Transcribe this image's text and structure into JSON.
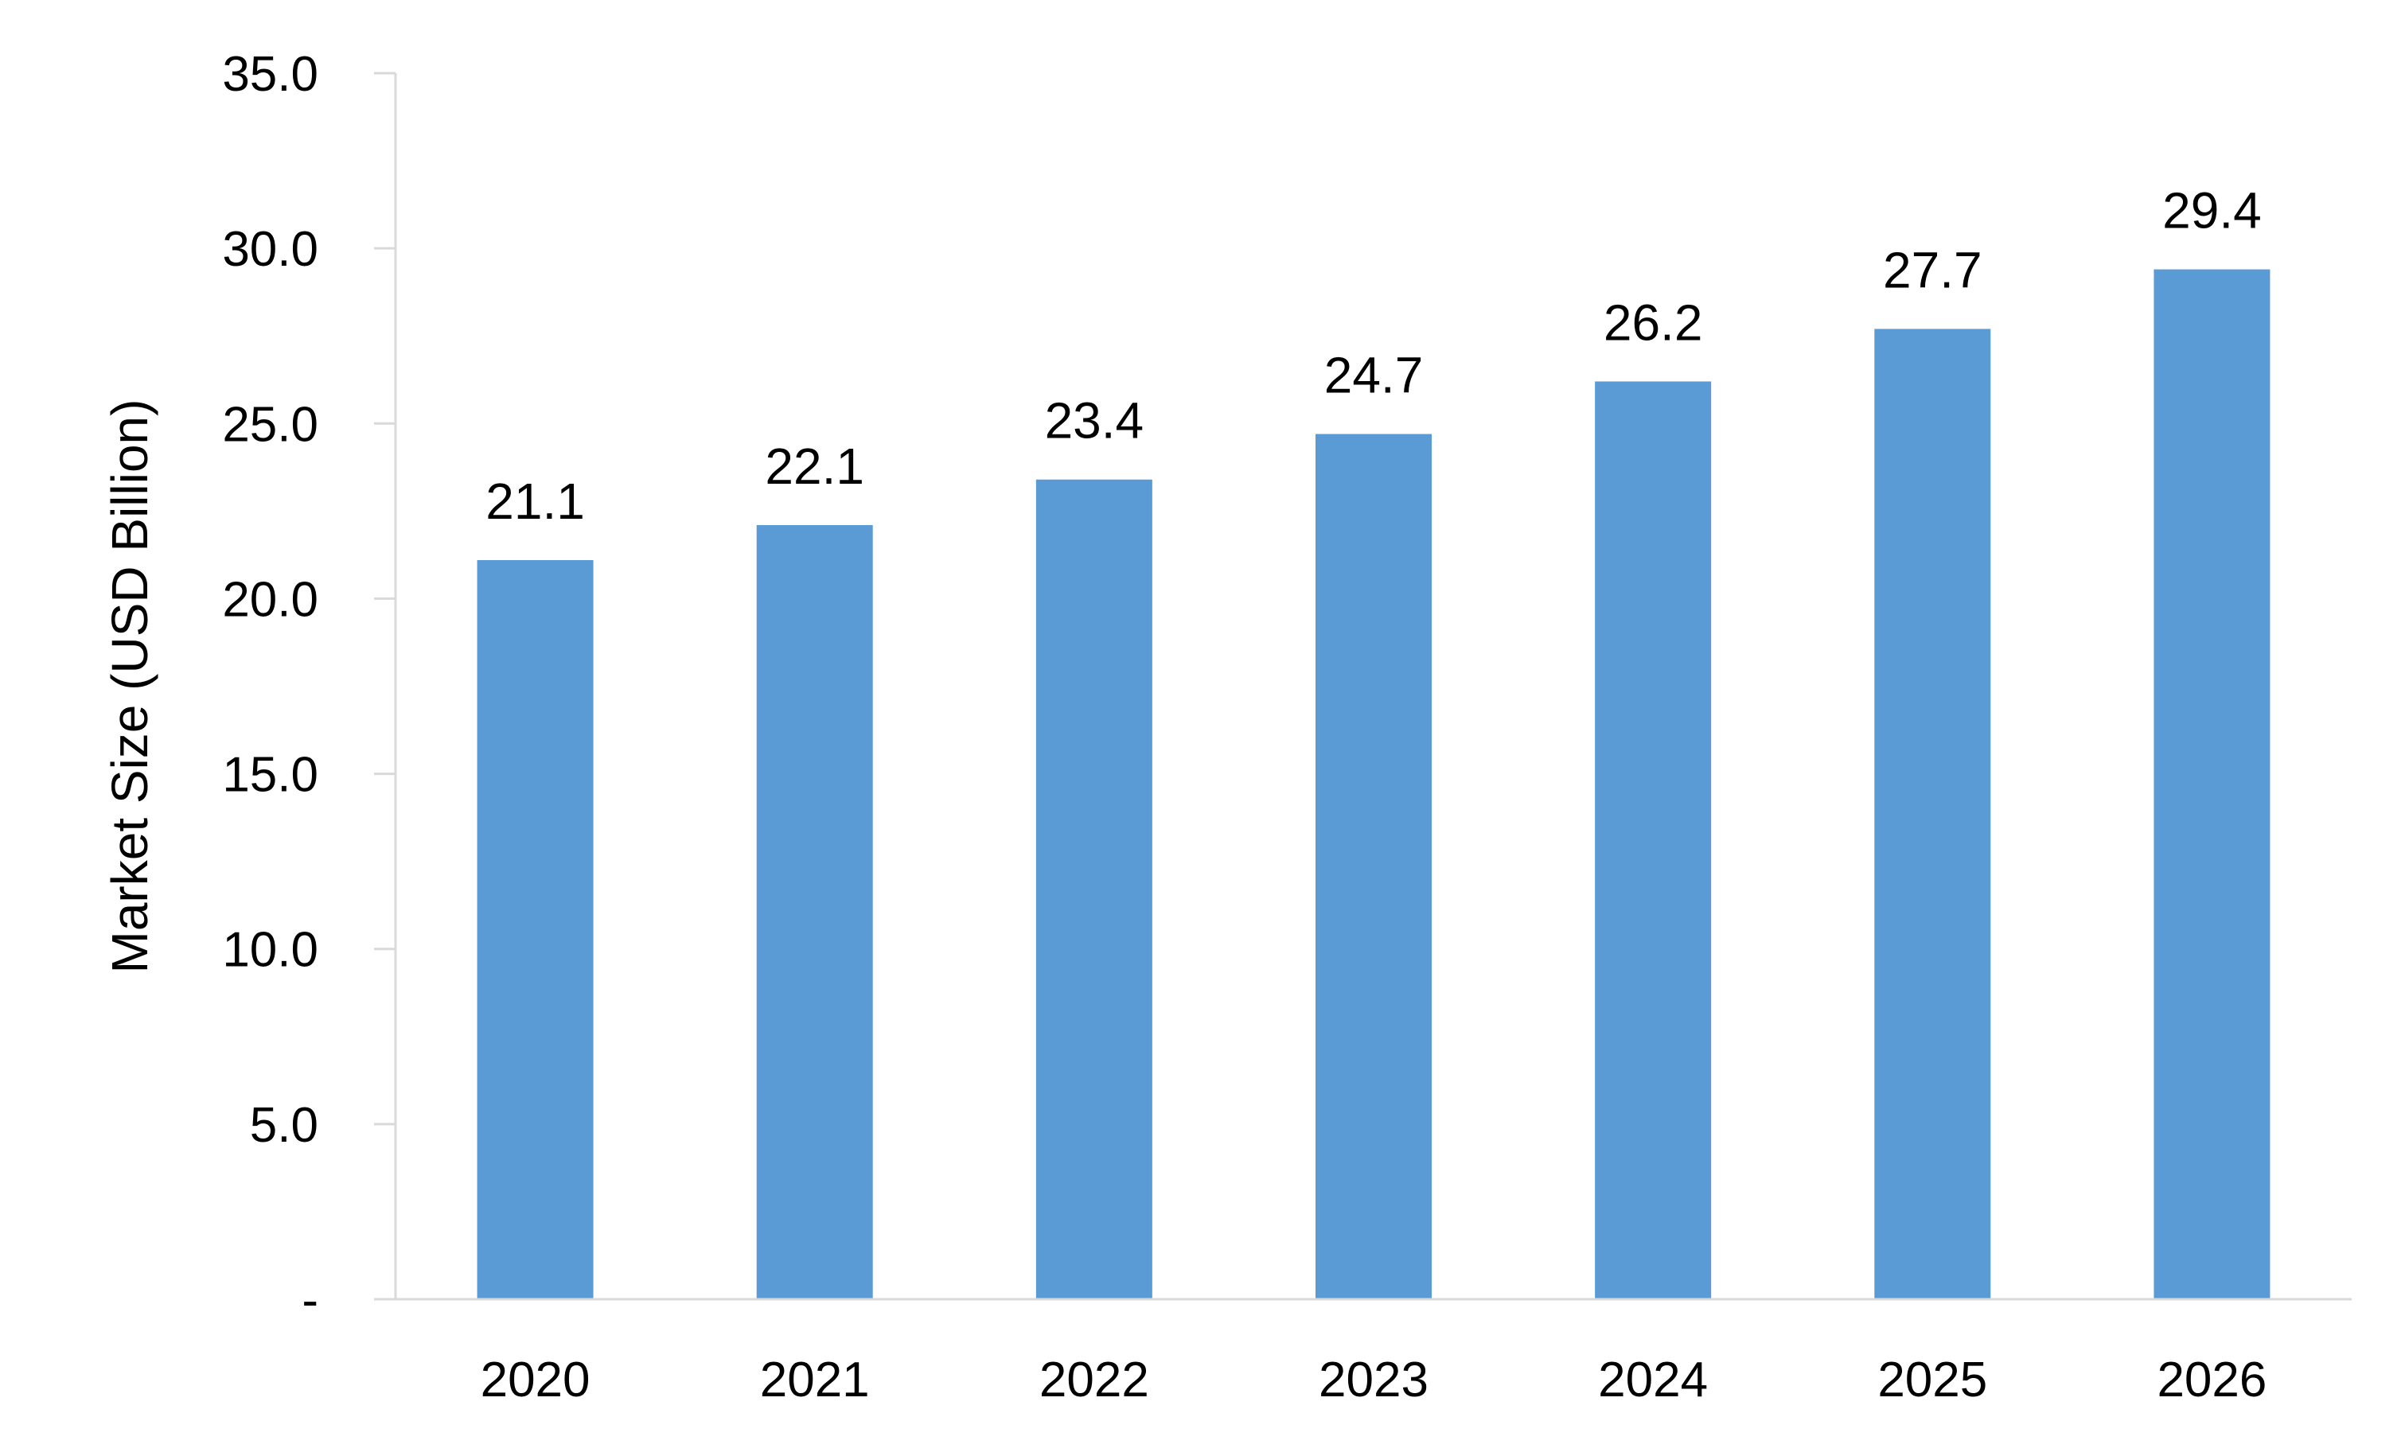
{
  "chart_data": {
    "type": "bar",
    "title": "",
    "xlabel": "",
    "ylabel": "Market Size (USD Billion)",
    "categories": [
      "2020",
      "2021",
      "2022",
      "2023",
      "2024",
      "2025",
      "2026"
    ],
    "values": [
      21.1,
      22.1,
      23.4,
      24.7,
      26.2,
      27.7,
      29.4
    ],
    "data_labels": [
      "21.1",
      "22.1",
      "23.4",
      "24.7",
      "26.2",
      "27.7",
      "29.4"
    ],
    "ylim": [
      0,
      35
    ],
    "y_ticks": [
      0,
      5,
      10,
      15,
      20,
      25,
      30,
      35
    ],
    "y_tick_labels": [
      "-",
      "5.0",
      "10.0",
      "15.0",
      "20.0",
      "25.0",
      "30.0",
      "35.0"
    ],
    "grid": false,
    "legend": "none",
    "colors": {
      "bar": "#5b9bd5",
      "axis": "#d9d9d9",
      "text": "#000000"
    }
  }
}
